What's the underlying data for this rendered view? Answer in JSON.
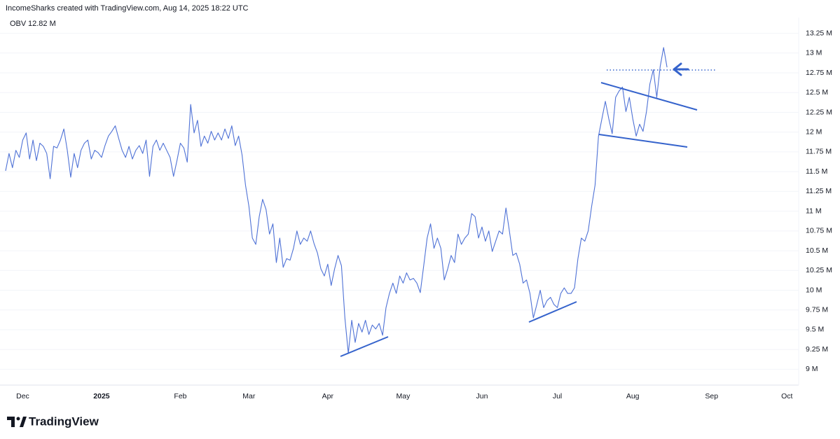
{
  "chart_data": {
    "type": "line",
    "title": "IncomeSharks created with TradingView.com, Aug 14, 2025 18:22 UTC",
    "categories": [
      null,
      null,
      null,
      null,
      null,
      "Dec",
      null,
      null,
      null,
      null,
      null,
      null,
      null,
      null,
      null,
      null,
      null,
      null,
      null,
      null,
      null,
      null,
      null,
      null,
      null,
      null,
      null,
      null,
      "2025",
      null,
      null,
      null,
      null,
      null,
      null,
      null,
      null,
      null,
      null,
      null,
      null,
      null,
      null,
      null,
      null,
      null,
      null,
      null,
      null,
      null,
      null,
      "Feb",
      null,
      null,
      null,
      null,
      null,
      null,
      null,
      null,
      null,
      null,
      null,
      null,
      null,
      null,
      null,
      null,
      null,
      null,
      null,
      "Mar",
      null,
      null,
      null,
      null,
      null,
      null,
      null,
      null,
      null,
      null,
      null,
      null,
      null,
      null,
      null,
      null,
      null,
      null,
      null,
      null,
      null,
      null,
      "Apr",
      null,
      null,
      null,
      null,
      null,
      null,
      null,
      null,
      null,
      null,
      null,
      null,
      null,
      null,
      null,
      null,
      null,
      null,
      null,
      null,
      null,
      "May",
      null,
      null,
      null,
      null,
      null,
      null,
      null,
      null,
      null,
      null,
      null,
      null,
      null,
      null,
      null,
      null,
      null,
      null,
      null,
      null,
      null,
      null,
      "Jun",
      null,
      null,
      null,
      null,
      null,
      null,
      null,
      null,
      null,
      null,
      null,
      null,
      null,
      null,
      null,
      null,
      null,
      null,
      null,
      null,
      null,
      "Jul",
      null,
      null,
      null,
      null,
      null,
      null,
      null,
      null,
      null,
      null,
      null,
      null,
      null,
      null,
      null,
      null,
      null,
      null,
      null,
      null,
      null,
      "Aug",
      null,
      null,
      null,
      null,
      null,
      null,
      null,
      null,
      null,
      null,
      null,
      null,
      null,
      null,
      null,
      null,
      null,
      null,
      null,
      null,
      null,
      null,
      "Sep",
      null,
      null,
      null,
      null,
      null,
      null,
      null,
      null,
      null,
      null,
      null,
      null,
      null,
      null,
      null,
      null,
      null,
      null,
      null,
      null,
      null,
      "Oct",
      null,
      null,
      null
    ],
    "series": [
      {
        "name": "OBV",
        "color": "#4f72d6",
        "last_value_label": "12.82 M",
        "values": [
          11.51,
          11.73,
          11.55,
          11.77,
          11.68,
          11.9,
          11.99,
          11.66,
          11.9,
          11.64,
          11.86,
          11.82,
          11.73,
          11.41,
          11.82,
          11.8,
          11.9,
          12.04,
          11.77,
          11.43,
          11.73,
          11.55,
          11.77,
          11.86,
          11.9,
          11.66,
          11.77,
          11.74,
          11.68,
          11.83,
          11.95,
          12.01,
          12.08,
          11.92,
          11.77,
          11.68,
          11.82,
          11.66,
          11.77,
          11.83,
          11.73,
          11.9,
          11.44,
          11.82,
          11.9,
          11.77,
          11.86,
          11.77,
          11.68,
          11.44,
          11.64,
          11.86,
          11.8,
          11.62,
          12.35,
          11.99,
          12.15,
          11.82,
          11.95,
          11.86,
          12.01,
          11.9,
          11.99,
          11.9,
          12.04,
          11.92,
          12.08,
          11.83,
          11.95,
          11.71,
          11.33,
          11.06,
          10.66,
          10.58,
          10.93,
          11.15,
          11.02,
          10.71,
          10.84,
          10.35,
          10.66,
          10.29,
          10.4,
          10.38,
          10.53,
          10.75,
          10.58,
          10.66,
          10.62,
          10.75,
          10.59,
          10.47,
          10.27,
          10.18,
          10.33,
          10.06,
          10.27,
          10.44,
          10.31,
          9.65,
          9.2,
          9.62,
          9.34,
          9.58,
          9.47,
          9.62,
          9.44,
          9.56,
          9.51,
          9.58,
          9.43,
          9.78,
          9.96,
          10.09,
          9.96,
          10.18,
          10.09,
          10.22,
          10.13,
          10.15,
          10.09,
          9.97,
          10.31,
          10.66,
          10.84,
          10.53,
          10.66,
          10.53,
          10.13,
          10.27,
          10.44,
          10.35,
          10.71,
          10.58,
          10.66,
          10.71,
          10.97,
          10.93,
          10.66,
          10.8,
          10.62,
          10.75,
          10.49,
          10.62,
          10.75,
          10.71,
          11.04,
          10.75,
          10.44,
          10.47,
          10.33,
          10.09,
          10.13,
          9.96,
          9.65,
          9.82,
          10.0,
          9.78,
          9.87,
          9.91,
          9.82,
          9.78,
          9.96,
          10.03,
          9.96,
          9.96,
          10.03,
          10.4,
          10.66,
          10.62,
          10.75,
          11.06,
          11.33,
          11.95,
          12.17,
          12.39,
          12.17,
          11.98,
          12.44,
          12.52,
          12.57,
          12.26,
          12.44,
          12.17,
          11.95,
          12.1,
          12.01,
          12.26,
          12.61,
          12.79,
          12.44,
          12.83,
          13.07,
          12.82,
          null,
          null,
          null,
          null,
          null,
          null,
          null,
          null,
          null,
          null,
          null,
          null,
          null,
          null,
          null,
          null,
          null,
          null,
          null,
          null,
          null,
          null,
          null,
          null,
          null,
          null,
          null,
          null,
          null,
          null,
          null,
          null,
          null,
          null,
          null,
          null,
          null,
          null
        ]
      }
    ],
    "ylim": [
      8.8,
      13.45
    ],
    "yticks": [
      {
        "value": 9,
        "label": "9 M"
      },
      {
        "value": 9.25,
        "label": "9.25 M"
      },
      {
        "value": 9.5,
        "label": "9.5 M"
      },
      {
        "value": 9.75,
        "label": "9.75 M"
      },
      {
        "value": 10,
        "label": "10 M"
      },
      {
        "value": 10.25,
        "label": "10.25 M"
      },
      {
        "value": 10.5,
        "label": "10.5 M"
      },
      {
        "value": 10.75,
        "label": "10.75 M"
      },
      {
        "value": 11,
        "label": "11 M"
      },
      {
        "value": 11.25,
        "label": "11.25 M"
      },
      {
        "value": 11.5,
        "label": "11.5 M"
      },
      {
        "value": 11.75,
        "label": "11.75 M"
      },
      {
        "value": 12,
        "label": "12 M"
      },
      {
        "value": 12.25,
        "label": "12.25 M"
      },
      {
        "value": 12.5,
        "label": "12.5 M"
      },
      {
        "value": 12.75,
        "label": "12.75 M"
      },
      {
        "value": 13,
        "label": "13 M"
      },
      {
        "value": 13.25,
        "label": "13.25 M"
      }
    ],
    "grid": true
  },
  "branding": "TradingView"
}
